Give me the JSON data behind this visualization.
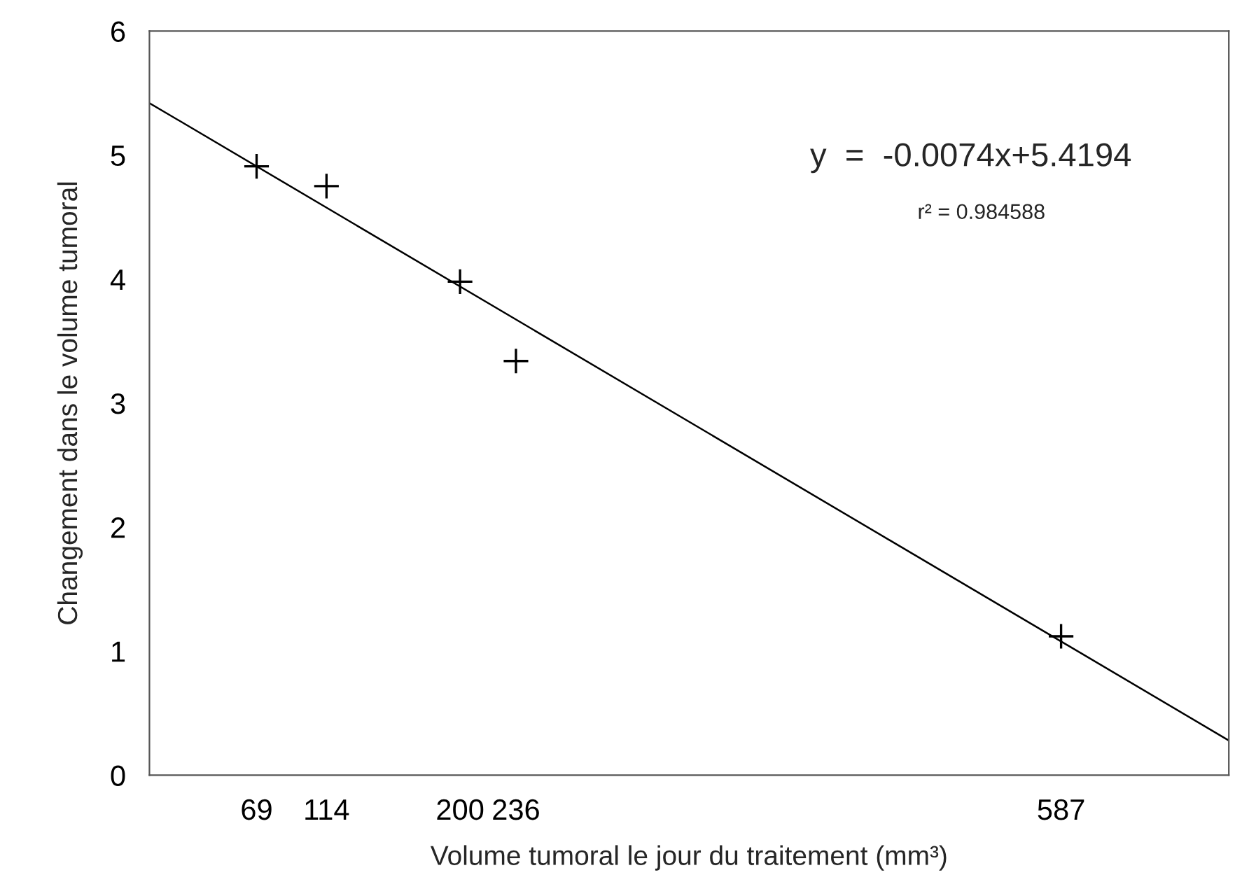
{
  "chart_data": {
    "type": "scatter",
    "xlabel": "Volume tumoral le jour du traitement (mm³)",
    "ylabel": "Changement dans le volume tumoral",
    "xlim": [
      0,
      695
    ],
    "xticks": [
      69,
      114,
      200,
      236,
      587
    ],
    "ylim": [
      0,
      6
    ],
    "yticks": [
      0,
      1,
      2,
      3,
      4,
      5,
      6
    ],
    "grid": false,
    "legend": false,
    "series": [
      {
        "color": "#000000",
        "marker": "cross",
        "x": [
          69,
          114,
          200,
          236,
          587
        ],
        "values": [
          4.91,
          4.75,
          3.98,
          3.34,
          1.12
        ]
      },
      {
        "type": "line",
        "color": "#000000",
        "line_style": "solid",
        "marker": "none",
        "x": [
          0,
          695
        ],
        "values": [
          5.42,
          0.28
        ]
      }
    ],
    "annotations": [
      "y  =  -0.0074x+5.4194",
      "r² = 0.984588"
    ]
  }
}
